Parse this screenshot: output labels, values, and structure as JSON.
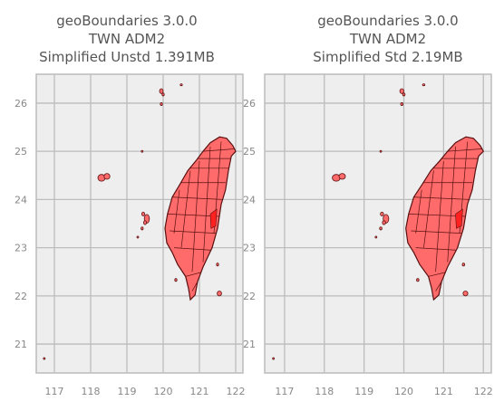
{
  "panels": [
    {
      "title_lines": [
        "geoBoundaries 3.0.0",
        "TWN ADM2",
        "Simplified Unstd 1.391MB"
      ],
      "x_ticks": [
        "117",
        "118",
        "119",
        "120",
        "121",
        "122"
      ],
      "y_ticks": [
        "21",
        "22",
        "23",
        "24",
        "25",
        "26"
      ]
    },
    {
      "title_lines": [
        "geoBoundaries 3.0.0",
        "TWN ADM2",
        "Simplified Std 2.19MB"
      ],
      "x_ticks": [
        "117",
        "118",
        "119",
        "120",
        "121",
        "122"
      ],
      "y_ticks": [
        "21",
        "22",
        "23",
        "24",
        "25",
        "26"
      ]
    }
  ],
  "map": {
    "x_range": [
      116.5,
      122.2
    ],
    "y_range": [
      20.4,
      26.6
    ],
    "x_tick_values": [
      117,
      118,
      119,
      120,
      121,
      122
    ],
    "y_tick_values": [
      21,
      22,
      23,
      24,
      25,
      26
    ],
    "background_color": "#eeeeee",
    "grid_color": "#bcbcbc",
    "fill_color": "#ff6b6b",
    "highlight_color": "#ff2020",
    "edge_color": "#5a1010",
    "main_island": [
      [
        121.56,
        25.3
      ],
      [
        121.75,
        25.27
      ],
      [
        121.92,
        25.12
      ],
      [
        122.0,
        25.0
      ],
      [
        121.88,
        24.9
      ],
      [
        121.8,
        24.6
      ],
      [
        121.72,
        24.2
      ],
      [
        121.6,
        23.9
      ],
      [
        121.5,
        23.4
      ],
      [
        121.35,
        23.0
      ],
      [
        121.1,
        22.6
      ],
      [
        120.95,
        22.3
      ],
      [
        120.88,
        22.02
      ],
      [
        120.75,
        21.92
      ],
      [
        120.7,
        22.15
      ],
      [
        120.62,
        22.4
      ],
      [
        120.4,
        22.65
      ],
      [
        120.25,
        22.9
      ],
      [
        120.1,
        23.1
      ],
      [
        120.05,
        23.4
      ],
      [
        120.12,
        23.7
      ],
      [
        120.25,
        24.05
      ],
      [
        120.45,
        24.3
      ],
      [
        120.68,
        24.6
      ],
      [
        120.9,
        24.8
      ],
      [
        121.1,
        25.0
      ],
      [
        121.3,
        25.18
      ]
    ],
    "division_lines": [
      [
        [
          120.3,
          23.0
        ],
        [
          121.3,
          22.95
        ]
      ],
      [
        [
          120.18,
          23.35
        ],
        [
          121.45,
          23.3
        ]
      ],
      [
        [
          120.12,
          23.7
        ],
        [
          121.55,
          23.65
        ]
      ],
      [
        [
          120.25,
          24.05
        ],
        [
          121.65,
          24.0
        ]
      ],
      [
        [
          120.45,
          24.35
        ],
        [
          121.72,
          24.35
        ]
      ],
      [
        [
          120.7,
          24.65
        ],
        [
          121.8,
          24.65
        ]
      ],
      [
        [
          120.95,
          24.85
        ],
        [
          121.9,
          24.85
        ]
      ],
      [
        [
          121.1,
          25.0
        ],
        [
          121.95,
          25.05
        ]
      ],
      [
        [
          120.6,
          22.4
        ],
        [
          121.1,
          22.5
        ]
      ],
      [
        [
          120.8,
          22.1
        ],
        [
          120.95,
          22.3
        ]
      ],
      [
        [
          120.5,
          23.0
        ],
        [
          120.75,
          24.6
        ]
      ],
      [
        [
          120.8,
          22.5
        ],
        [
          121.0,
          24.8
        ]
      ],
      [
        [
          121.1,
          22.7
        ],
        [
          121.3,
          25.1
        ]
      ],
      [
        [
          121.4,
          23.3
        ],
        [
          121.6,
          25.2
        ]
      ],
      [
        [
          120.3,
          23.3
        ],
        [
          120.45,
          24.2
        ]
      ]
    ],
    "highlight": [
      [
        121.3,
        23.7
      ],
      [
        121.48,
        23.8
      ],
      [
        121.45,
        23.45
      ],
      [
        121.32,
        23.4
      ]
    ],
    "islands": [
      [
        118.3,
        24.45,
        0.1,
        0.07
      ],
      [
        118.45,
        24.48,
        0.08,
        0.06
      ],
      [
        119.55,
        23.6,
        0.07,
        0.09
      ],
      [
        119.45,
        23.7,
        0.04,
        0.04
      ],
      [
        119.5,
        23.52,
        0.04,
        0.04
      ],
      [
        119.42,
        23.4,
        0.03,
        0.03
      ],
      [
        119.3,
        23.22,
        0.02,
        0.02
      ],
      [
        121.55,
        22.05,
        0.06,
        0.05
      ],
      [
        121.5,
        22.65,
        0.03,
        0.03
      ],
      [
        120.35,
        22.33,
        0.03,
        0.03
      ],
      [
        119.95,
        26.25,
        0.05,
        0.05
      ],
      [
        120.0,
        26.18,
        0.03,
        0.03
      ],
      [
        119.95,
        25.98,
        0.03,
        0.03
      ],
      [
        120.5,
        26.38,
        0.03,
        0.02
      ],
      [
        119.42,
        25.0,
        0.02,
        0.02
      ],
      [
        116.72,
        20.7,
        0.02,
        0.02
      ]
    ]
  }
}
